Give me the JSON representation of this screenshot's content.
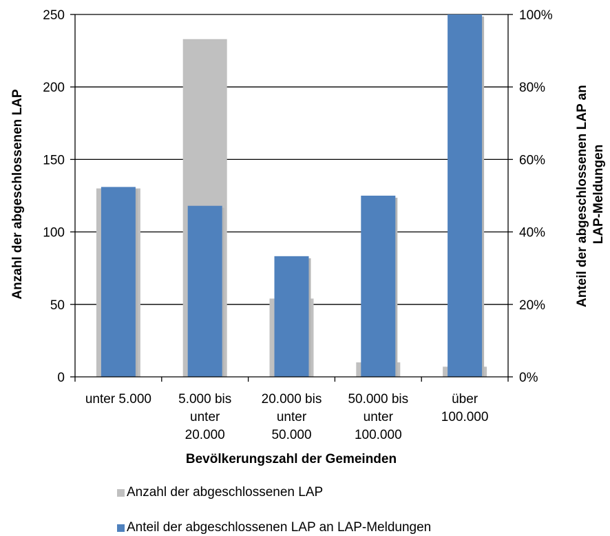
{
  "chart_data": {
    "type": "bar",
    "categories": [
      [
        "unter 5.000"
      ],
      [
        "5.000 bis",
        "unter",
        "20.000"
      ],
      [
        "20.000 bis",
        "unter",
        "50.000"
      ],
      [
        "50.000 bis",
        "unter",
        "100.000"
      ],
      [
        "über",
        "100.000"
      ]
    ],
    "xlabel": "Bevölkerungszahl der Gemeinden",
    "ylabel": "Anzahl der abgeschlossenen LAP",
    "y2label": [
      "Anteil der abgeschlossenen LAP an",
      "LAP-Meldungen"
    ],
    "ylim": [
      0,
      250
    ],
    "yticks": [
      0,
      50,
      100,
      150,
      200,
      250
    ],
    "y2lim": [
      0,
      100
    ],
    "y2ticks": [
      "0%",
      "20%",
      "40%",
      "60%",
      "80%",
      "100%"
    ],
    "grid": true,
    "legend_placement": "bottom",
    "series": [
      {
        "name": "Anzahl der abgeschlossenen LAP",
        "axis": "left",
        "color": "#c0c0c0",
        "values": [
          130,
          233,
          54,
          10,
          7
        ]
      },
      {
        "name": "Anteil der abgeschlossenen LAP an LAP-Meldungen",
        "axis": "right",
        "unit": "%",
        "color": "#4f81bd",
        "values": [
          52.4,
          47.2,
          33.3,
          50.0,
          100.0
        ]
      }
    ]
  }
}
